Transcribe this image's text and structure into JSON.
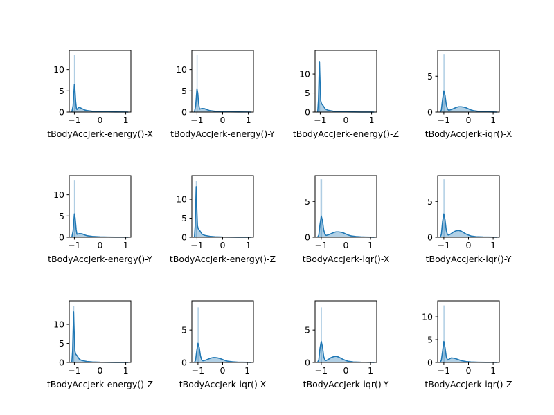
{
  "style": {
    "line_color": "#1f77b4",
    "fill_color": "#a6c8e0",
    "axis_color": "#000000"
  },
  "chart_data": [
    {
      "type": "area",
      "xlabel": "tBodyAccJerk-energy()-X",
      "xlim": [
        -1.2,
        1.2
      ],
      "ylim": [
        0,
        14.5
      ],
      "xticks": [
        -1,
        0,
        1
      ],
      "yticks": [
        0,
        5,
        10
      ],
      "x": [
        -1.1,
        -1.05,
        -1.0,
        -0.98,
        -0.95,
        -0.92,
        -0.9,
        -0.85,
        -0.8,
        -0.7,
        -0.6,
        -0.5,
        -0.3,
        0,
        0.3,
        0.6,
        1.0,
        1.1
      ],
      "y": [
        0,
        1.5,
        6.5,
        5.5,
        2.5,
        0.8,
        0.6,
        1.0,
        1.1,
        0.8,
        0.5,
        0.35,
        0.2,
        0.1,
        0.05,
        0.03,
        0.02,
        0
      ],
      "hist": {
        "x": -1.0,
        "height": 13.5
      }
    },
    {
      "type": "area",
      "xlabel": "tBodyAccJerk-energy()-Y",
      "xlim": [
        -1.2,
        1.2
      ],
      "ylim": [
        0,
        14.5
      ],
      "xticks": [
        -1,
        0,
        1
      ],
      "yticks": [
        0,
        5,
        10
      ],
      "x": [
        -1.1,
        -1.05,
        -1.0,
        -0.97,
        -0.93,
        -0.9,
        -0.8,
        -0.7,
        -0.6,
        -0.5,
        -0.3,
        0,
        0.3,
        0.6,
        1.0,
        1.1
      ],
      "y": [
        0,
        1.5,
        5.5,
        4.5,
        1.8,
        0.7,
        0.85,
        0.8,
        0.55,
        0.35,
        0.2,
        0.1,
        0.05,
        0.03,
        0.02,
        0
      ],
      "hist": {
        "x": -1.0,
        "height": 13.5
      }
    },
    {
      "type": "area",
      "xlabel": "tBodyAccJerk-energy()-Z",
      "xlim": [
        -1.2,
        1.2
      ],
      "ylim": [
        0,
        16.2
      ],
      "xticks": [
        -1,
        0,
        1
      ],
      "yticks": [
        0,
        5,
        10
      ],
      "x": [
        -1.1,
        -1.07,
        -1.03,
        -1.0,
        -0.98,
        -0.95,
        -0.9,
        -0.8,
        -0.7,
        -0.5,
        -0.3,
        0,
        0.3,
        0.6,
        1.0,
        1.1
      ],
      "y": [
        0,
        3,
        13.3,
        6.5,
        3.0,
        2.2,
        1.8,
        0.8,
        0.5,
        0.25,
        0.12,
        0.05,
        0.03,
        0.02,
        0.01,
        0
      ],
      "hist": {
        "x": -1.03,
        "height": 13.3
      }
    },
    {
      "type": "area",
      "xlabel": "tBodyAccJerk-iqr()-X",
      "xlim": [
        -1.25,
        1.25
      ],
      "ylim": [
        0,
        8.6
      ],
      "xticks": [
        -1,
        0,
        1
      ],
      "yticks": [
        0,
        5
      ],
      "x": [
        -1.15,
        -1.1,
        -1.05,
        -1.0,
        -0.95,
        -0.9,
        -0.85,
        -0.8,
        -0.7,
        -0.6,
        -0.5,
        -0.4,
        -0.3,
        -0.2,
        -0.1,
        0,
        0.1,
        0.2,
        0.4,
        0.6,
        0.8,
        1.0,
        1.15
      ],
      "y": [
        0,
        0.3,
        1.8,
        2.95,
        2.3,
        1.0,
        0.4,
        0.25,
        0.35,
        0.5,
        0.65,
        0.75,
        0.75,
        0.7,
        0.6,
        0.45,
        0.3,
        0.2,
        0.1,
        0.05,
        0.03,
        0.02,
        0
      ],
      "hist": {
        "x": -1.0,
        "height": 8.1
      }
    },
    {
      "type": "area",
      "xlabel": "tBodyAccJerk-energy()-Y",
      "xlim": [
        -1.2,
        1.2
      ],
      "ylim": [
        0,
        14.5
      ],
      "xticks": [
        -1,
        0,
        1
      ],
      "yticks": [
        0,
        5,
        10
      ],
      "x": [
        -1.1,
        -1.05,
        -1.0,
        -0.97,
        -0.93,
        -0.9,
        -0.8,
        -0.7,
        -0.6,
        -0.5,
        -0.3,
        0,
        0.3,
        0.6,
        1.0,
        1.1
      ],
      "y": [
        0,
        1.5,
        5.5,
        4.5,
        1.8,
        0.7,
        0.85,
        0.8,
        0.55,
        0.35,
        0.2,
        0.1,
        0.05,
        0.03,
        0.02,
        0
      ],
      "hist": {
        "x": -1.0,
        "height": 13.5
      }
    },
    {
      "type": "area",
      "xlabel": "tBodyAccJerk-energy()-Z",
      "xlim": [
        -1.2,
        1.2
      ],
      "ylim": [
        0,
        16.2
      ],
      "xticks": [
        -1,
        0,
        1
      ],
      "yticks": [
        0,
        5,
        10
      ],
      "x": [
        -1.1,
        -1.07,
        -1.03,
        -1.0,
        -0.98,
        -0.95,
        -0.9,
        -0.8,
        -0.7,
        -0.5,
        -0.3,
        0,
        0.3,
        0.6,
        1.0,
        1.1
      ],
      "y": [
        0,
        3,
        13.3,
        6.5,
        3.0,
        2.2,
        1.8,
        0.8,
        0.5,
        0.25,
        0.12,
        0.05,
        0.03,
        0.02,
        0.01,
        0
      ],
      "hist": {
        "x": -1.03,
        "height": 14.8
      }
    },
    {
      "type": "area",
      "xlabel": "tBodyAccJerk-iqr()-X",
      "xlim": [
        -1.25,
        1.25
      ],
      "ylim": [
        0,
        8.6
      ],
      "xticks": [
        -1,
        0,
        1
      ],
      "yticks": [
        0,
        5
      ],
      "x": [
        -1.15,
        -1.1,
        -1.05,
        -1.0,
        -0.95,
        -0.9,
        -0.85,
        -0.8,
        -0.7,
        -0.6,
        -0.5,
        -0.4,
        -0.3,
        -0.2,
        -0.1,
        0,
        0.1,
        0.2,
        0.4,
        0.6,
        0.8,
        1.0,
        1.15
      ],
      "y": [
        0,
        0.3,
        1.8,
        2.95,
        2.3,
        1.0,
        0.4,
        0.25,
        0.35,
        0.5,
        0.65,
        0.75,
        0.75,
        0.7,
        0.6,
        0.45,
        0.3,
        0.2,
        0.1,
        0.05,
        0.03,
        0.02,
        0
      ],
      "hist": {
        "x": -1.0,
        "height": 8.1,
        "width": 0.07
      }
    },
    {
      "type": "area",
      "xlabel": "tBodyAccJerk-iqr()-Y",
      "xlim": [
        -1.25,
        1.25
      ],
      "ylim": [
        0,
        8.6
      ],
      "xticks": [
        -1,
        0,
        1
      ],
      "yticks": [
        0,
        5
      ],
      "x": [
        -1.15,
        -1.1,
        -1.05,
        -1.0,
        -0.95,
        -0.9,
        -0.85,
        -0.8,
        -0.7,
        -0.6,
        -0.5,
        -0.4,
        -0.3,
        -0.2,
        -0.1,
        0,
        0.1,
        0.3,
        0.6,
        1.0,
        1.15
      ],
      "y": [
        0,
        0.4,
        2.2,
        3.25,
        2.4,
        0.9,
        0.35,
        0.3,
        0.5,
        0.75,
        0.9,
        0.95,
        0.85,
        0.65,
        0.45,
        0.3,
        0.18,
        0.08,
        0.04,
        0.02,
        0
      ],
      "hist": {
        "x": -1.0,
        "height": 8.1
      }
    },
    {
      "type": "area",
      "xlabel": "tBodyAccJerk-energy()-Z",
      "xlim": [
        -1.2,
        1.2
      ],
      "ylim": [
        0,
        16.2
      ],
      "xticks": [
        -1,
        0,
        1
      ],
      "yticks": [
        0,
        5,
        10
      ],
      "x": [
        -1.1,
        -1.07,
        -1.03,
        -1.0,
        -0.98,
        -0.95,
        -0.9,
        -0.8,
        -0.7,
        -0.5,
        -0.3,
        0,
        0.3,
        0.6,
        1.0,
        1.1
      ],
      "y": [
        0,
        3,
        13.3,
        6.5,
        3.0,
        2.2,
        1.8,
        0.8,
        0.5,
        0.25,
        0.12,
        0.05,
        0.03,
        0.02,
        0.01,
        0
      ],
      "hist": {
        "x": -1.03,
        "height": 14.8
      }
    },
    {
      "type": "area",
      "xlabel": "tBodyAccJerk-iqr()-X",
      "xlim": [
        -1.25,
        1.25
      ],
      "ylim": [
        0,
        9.5
      ],
      "xticks": [
        -1,
        0,
        1
      ],
      "yticks": [
        0,
        5
      ],
      "x": [
        -1.15,
        -1.1,
        -1.05,
        -1.0,
        -0.95,
        -0.9,
        -0.85,
        -0.8,
        -0.7,
        -0.6,
        -0.5,
        -0.4,
        -0.3,
        -0.2,
        -0.1,
        0,
        0.1,
        0.2,
        0.4,
        0.6,
        0.8,
        1.0,
        1.15
      ],
      "y": [
        0,
        0.3,
        1.8,
        2.95,
        2.3,
        1.0,
        0.4,
        0.25,
        0.35,
        0.5,
        0.65,
        0.75,
        0.75,
        0.7,
        0.6,
        0.45,
        0.3,
        0.2,
        0.1,
        0.05,
        0.03,
        0.02,
        0
      ],
      "hist": {
        "x": -1.0,
        "height": 8.5
      }
    },
    {
      "type": "area",
      "xlabel": "tBodyAccJerk-iqr()-Y",
      "xlim": [
        -1.25,
        1.25
      ],
      "ylim": [
        0,
        9.5
      ],
      "xticks": [
        -1,
        0,
        1
      ],
      "yticks": [
        0,
        5
      ],
      "x": [
        -1.15,
        -1.1,
        -1.05,
        -1.0,
        -0.95,
        -0.9,
        -0.85,
        -0.8,
        -0.7,
        -0.6,
        -0.5,
        -0.4,
        -0.3,
        -0.2,
        -0.1,
        0,
        0.1,
        0.3,
        0.6,
        1.0,
        1.15
      ],
      "y": [
        0,
        0.4,
        2.2,
        3.25,
        2.4,
        0.9,
        0.35,
        0.3,
        0.5,
        0.75,
        0.9,
        0.95,
        0.85,
        0.65,
        0.45,
        0.3,
        0.18,
        0.08,
        0.04,
        0.02,
        0
      ],
      "hist": {
        "x": -1.0,
        "height": 8.5
      }
    },
    {
      "type": "area",
      "xlabel": "tBodyAccJerk-iqr()-Z",
      "xlim": [
        -1.25,
        1.25
      ],
      "ylim": [
        0,
        13.5
      ],
      "xticks": [
        -1,
        0,
        1
      ],
      "yticks": [
        0,
        5,
        10
      ],
      "x": [
        -1.15,
        -1.1,
        -1.05,
        -1.0,
        -0.95,
        -0.9,
        -0.85,
        -0.8,
        -0.7,
        -0.6,
        -0.5,
        -0.4,
        -0.3,
        -0.1,
        0.1,
        0.4,
        0.7,
        1.0,
        1.15
      ],
      "y": [
        0,
        0.5,
        2.5,
        4.6,
        3.2,
        1.2,
        0.55,
        0.7,
        1.0,
        0.95,
        0.8,
        0.6,
        0.4,
        0.2,
        0.1,
        0.05,
        0.03,
        0.02,
        0
      ],
      "hist": {
        "x": -1.0,
        "height": 12.5
      }
    }
  ]
}
